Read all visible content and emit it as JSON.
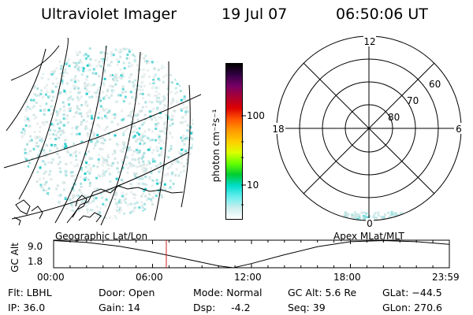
{
  "header": {
    "instrument": "Ultraviolet Imager",
    "date": "19 Jul 07",
    "time": "06:50:06 UT"
  },
  "colorbar": {
    "unit": "photon cm⁻²s⁻¹",
    "ticks": [
      "100",
      "10"
    ],
    "colors": [
      "#000000",
      "#330044",
      "#770066",
      "#aa0033",
      "#dd0000",
      "#ff5500",
      "#ff9900",
      "#ffcc00",
      "#ddff00",
      "#66ff00",
      "#00cc33",
      "#00ddcc",
      "#66eeee",
      "#cceeee",
      "#ffffff"
    ]
  },
  "polar_plot": {
    "mlt_labels": {
      "top": "12",
      "bottom": "0",
      "left": "18",
      "right": "6"
    },
    "lat_labels": [
      "60",
      "70",
      "80"
    ]
  },
  "timeline": {
    "left_label": "Geographic Lat/Lon",
    "right_label": "Apex MLat/MLT",
    "axis_title": "GC Alt",
    "y_ticks": [
      "9.0",
      "1.8"
    ],
    "x_ticks": [
      "00:00",
      "06:00",
      "12:00",
      "18:00",
      "23:59"
    ],
    "chart_data": {
      "type": "line",
      "title": "",
      "xlabel": "",
      "ylabel": "GC Alt",
      "xlim": [
        0,
        24
      ],
      "ylim": [
        1.8,
        9.0
      ],
      "x": [
        0,
        2,
        4,
        6,
        8,
        10,
        10.9,
        12,
        14,
        16,
        18,
        20,
        22,
        23.98
      ],
      "values": [
        8.9,
        8.4,
        7.4,
        5.9,
        4.1,
        2.3,
        1.8,
        2.9,
        5.2,
        7.3,
        8.6,
        8.9,
        8.6,
        7.9
      ],
      "marker_time": 6.835
    }
  },
  "status": {
    "flt": "Flt: LBHL",
    "ip": "IP: 36.0",
    "door": "Door: Open",
    "gain": "Gain: 14",
    "mode": "Mode: Normal",
    "dsp": "Dsp:     -4.2",
    "gc_alt": "GC Alt: 5.6 Re",
    "seq": "Seq: 39",
    "glat": "GLat: −44.5",
    "glon": "GLon: 270.6"
  }
}
